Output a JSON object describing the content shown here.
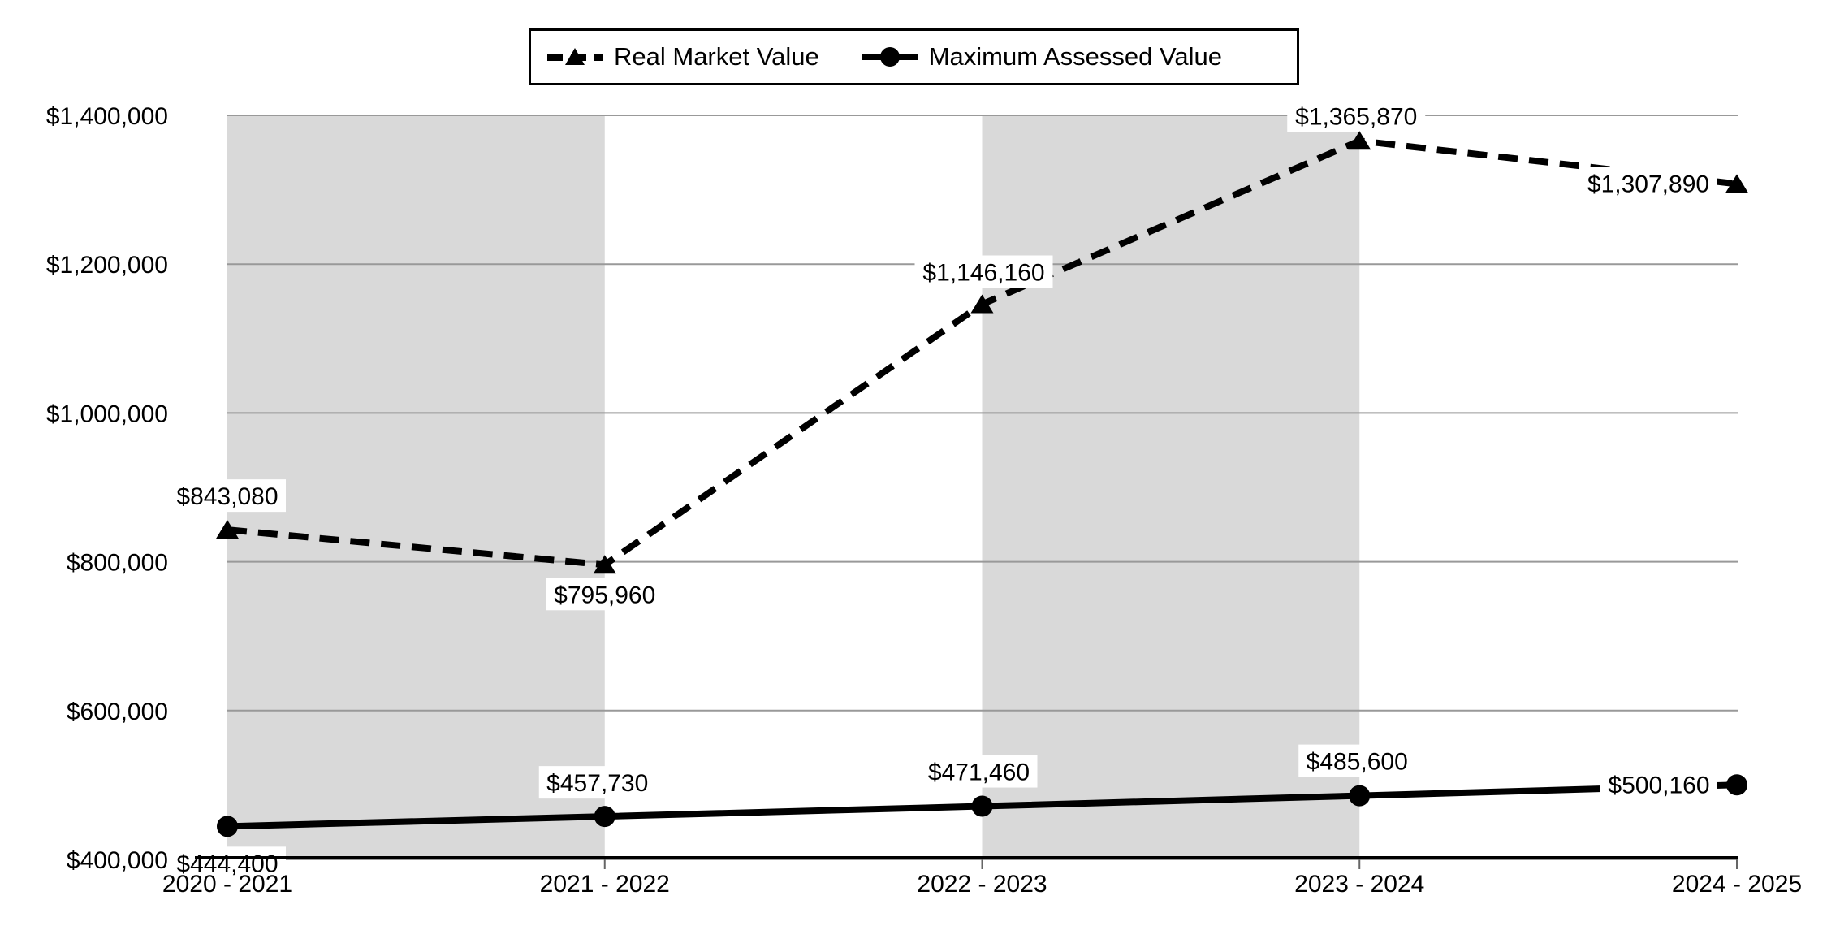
{
  "legend": {
    "items": [
      {
        "label": "Real Market Value",
        "marker": "triangle-dashed-line-icon"
      },
      {
        "label": "Maximum Assessed Value",
        "marker": "circle-solid-line-icon"
      }
    ]
  },
  "chart_data": {
    "type": "line",
    "title": "",
    "categories": [
      "2020 - 2021",
      "2021 - 2022",
      "2022 - 2023",
      "2023 - 2024",
      "2024 - 2025"
    ],
    "series": [
      {
        "name": "Real Market Value",
        "line_style": "dashed",
        "marker": "triangle",
        "values": [
          843080,
          795960,
          1146160,
          1365870,
          1307890
        ],
        "data_labels": [
          "$843,080",
          "$795,960",
          "$1,146,160",
          "$1,365,870",
          "$1,307,890"
        ]
      },
      {
        "name": "Maximum Assessed Value",
        "line_style": "solid",
        "marker": "circle",
        "values": [
          444400,
          457730,
          471460,
          485600,
          500160
        ],
        "data_labels": [
          "$444,400",
          "$457,730",
          "$471,460",
          "$485,600",
          "$500,160"
        ]
      }
    ],
    "y_axis": {
      "min": 400000,
      "max": 1400000,
      "step": 200000,
      "tick_labels": [
        "$400,000",
        "$600,000",
        "$800,000",
        "$1,000,000",
        "$1,200,000",
        "$1,400,000"
      ]
    },
    "x_axis": {
      "tick_labels": [
        "2020 - 2021",
        "2021 - 2022",
        "2022 - 2023",
        "2023 - 2024",
        "2024 - 2025"
      ]
    },
    "plot_bands_between_categories": [
      [
        0,
        1
      ],
      [
        2,
        3
      ]
    ],
    "grid": true,
    "legend_position": "top",
    "colors": {
      "series": "#000000",
      "gridline": "#999999",
      "band": "#d9d9d9",
      "axis": "#000000",
      "label_background": "#ffffff",
      "background": "#ffffff"
    }
  }
}
